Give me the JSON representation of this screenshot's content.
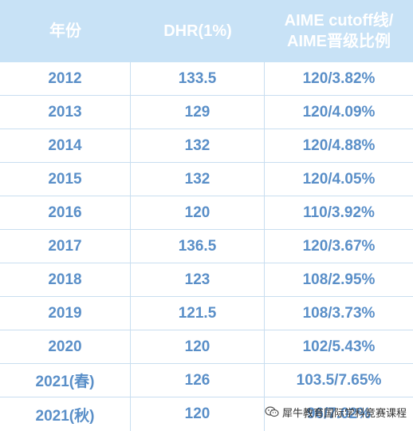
{
  "table": {
    "headers": [
      "年份",
      "DHR(1%)",
      "AIME cutoff线/\nAIME晋级比例"
    ],
    "rows": [
      [
        "2012",
        "133.5",
        "120/3.82%"
      ],
      [
        "2013",
        "129",
        "120/4.09%"
      ],
      [
        "2014",
        "132",
        "120/4.88%"
      ],
      [
        "2015",
        "132",
        "120/4.05%"
      ],
      [
        "2016",
        "120",
        "110/3.92%"
      ],
      [
        "2017",
        "136.5",
        "120/3.67%"
      ],
      [
        "2018",
        "123",
        "108/2.95%"
      ],
      [
        "2019",
        "121.5",
        "108/3.73%"
      ],
      [
        "2020",
        "120",
        "102/5.43%"
      ],
      [
        "2021(春)",
        "126",
        "103.5/7.65%"
      ],
      [
        "2021(秋)",
        "120",
        "96/7.02%"
      ]
    ]
  },
  "watermark": {
    "text": "犀牛教育国际学科竞赛课程",
    "icon": "wechat-icon"
  },
  "colors": {
    "header_bg": "#c8e2f6",
    "header_text": "#ffffff",
    "cell_text": "#5a8fc8",
    "grid": "#c9def0"
  }
}
